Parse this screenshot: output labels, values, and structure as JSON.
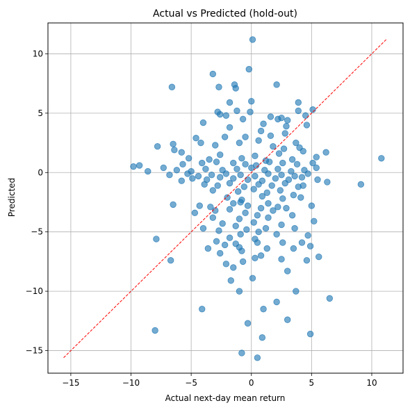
{
  "chart_data": {
    "type": "scatter",
    "title": "Actual vs Predicted (hold-out)",
    "xlabel": "Actual next-day mean return",
    "ylabel": "Predicted",
    "xlim": [
      -16.9,
      12.6
    ],
    "ylim": [
      -16.9,
      12.6
    ],
    "xticks": [
      -15,
      -10,
      -5,
      0,
      5,
      10
    ],
    "yticks": [
      -15,
      -10,
      -5,
      0,
      5,
      10
    ],
    "xtick_labels": [
      "−15",
      "−10",
      "−5",
      "0",
      "5",
      "10"
    ],
    "ytick_labels": [
      "−15",
      "−10",
      "−5",
      "0",
      "5",
      "10"
    ],
    "grid": true,
    "colors": {
      "points": "#1f77b4",
      "reference_line": "#ff0000",
      "grid": "#b0b0b0"
    },
    "reference_line": {
      "x": [
        -15.6,
        11.2
      ],
      "y": [
        -15.6,
        11.2
      ],
      "style": "dashed"
    },
    "points": [
      [
        0.1,
        11.2
      ],
      [
        -0.2,
        8.7
      ],
      [
        -3.2,
        8.3
      ],
      [
        2.1,
        7.4
      ],
      [
        -6.6,
        7.2
      ],
      [
        -1.4,
        7.4
      ],
      [
        -1.3,
        7.1
      ],
      [
        -2.7,
        7.2
      ],
      [
        -1.8,
        5.9
      ],
      [
        3.9,
        5.9
      ],
      [
        0.0,
        6.0
      ],
      [
        5.1,
        5.3
      ],
      [
        -2.6,
        4.9
      ],
      [
        -1.2,
        5.2
      ],
      [
        -2.1,
        4.8
      ],
      [
        2.2,
        4.5
      ],
      [
        -0.1,
        5.1
      ],
      [
        1.6,
        4.7
      ],
      [
        4.5,
        4.8
      ],
      [
        -2.8,
        5.1
      ],
      [
        3.9,
        5.2
      ],
      [
        2.5,
        4.6
      ],
      [
        -0.7,
        4.5
      ],
      [
        3.0,
        4.4
      ],
      [
        -4.0,
        4.2
      ],
      [
        2.9,
        3.9
      ],
      [
        1.0,
        4.1
      ],
      [
        4.6,
        4.0
      ],
      [
        -1.8,
        3.8
      ],
      [
        0.8,
        3.5
      ],
      [
        2.8,
        3.3
      ],
      [
        -0.5,
        3.0
      ],
      [
        1.6,
        3.1
      ],
      [
        -2.2,
        3.0
      ],
      [
        0.6,
        2.7
      ],
      [
        3.7,
        2.5
      ],
      [
        -6.5,
        2.4
      ],
      [
        -7.8,
        2.2
      ],
      [
        -4.6,
        2.9
      ],
      [
        -4.2,
        2.5
      ],
      [
        -3.0,
        2.3
      ],
      [
        -1.0,
        2.5
      ],
      [
        1.8,
        2.2
      ],
      [
        4.0,
        2.1
      ],
      [
        2.7,
        2.0
      ],
      [
        -5.8,
        1.7
      ],
      [
        -6.4,
        1.9
      ],
      [
        -2.6,
        1.5
      ],
      [
        0.3,
        1.4
      ],
      [
        2.3,
        1.6
      ],
      [
        4.3,
        1.8
      ],
      [
        6.2,
        1.7
      ],
      [
        -5.2,
        1.2
      ],
      [
        -3.5,
        1.1
      ],
      [
        -0.8,
        1.2
      ],
      [
        1.2,
        1.0
      ],
      [
        3.4,
        1.1
      ],
      [
        5.4,
        1.3
      ],
      [
        10.8,
        1.2
      ],
      [
        -9.8,
        0.5
      ],
      [
        -9.3,
        0.6
      ],
      [
        -7.3,
        0.4
      ],
      [
        -5.7,
        0.7
      ],
      [
        -4.1,
        0.8
      ],
      [
        -2.9,
        0.9
      ],
      [
        -1.5,
        0.8
      ],
      [
        -0.5,
        0.7
      ],
      [
        0.4,
        0.6
      ],
      [
        1.5,
        0.9
      ],
      [
        2.6,
        0.8
      ],
      [
        3.8,
        0.7
      ],
      [
        5.1,
        0.8
      ],
      [
        -8.6,
        0.1
      ],
      [
        -6.2,
        0.2
      ],
      [
        -5.0,
        0.1
      ],
      [
        -3.8,
        0.3
      ],
      [
        -2.4,
        0.2
      ],
      [
        -1.2,
        0.3
      ],
      [
        0.0,
        0.4
      ],
      [
        1.1,
        0.2
      ],
      [
        2.2,
        0.3
      ],
      [
        3.3,
        0.1
      ],
      [
        4.4,
        0.2
      ],
      [
        5.4,
        0.4
      ],
      [
        -6.8,
        -0.2
      ],
      [
        -5.3,
        -0.1
      ],
      [
        -4.4,
        -0.3
      ],
      [
        -3.3,
        -0.2
      ],
      [
        -2.1,
        -0.1
      ],
      [
        -0.9,
        -0.2
      ],
      [
        0.3,
        -0.3
      ],
      [
        1.4,
        -0.1
      ],
      [
        2.5,
        -0.2
      ],
      [
        3.6,
        -0.3
      ],
      [
        4.7,
        -0.1
      ],
      [
        -5.8,
        -0.7
      ],
      [
        -4.9,
        -0.5
      ],
      [
        -3.7,
        -0.6
      ],
      [
        -2.6,
        -0.4
      ],
      [
        -1.5,
        -0.5
      ],
      [
        -0.3,
        -0.6
      ],
      [
        0.9,
        -0.7
      ],
      [
        2.0,
        -0.5
      ],
      [
        3.1,
        -0.6
      ],
      [
        4.2,
        -0.4
      ],
      [
        5.5,
        -0.6
      ],
      [
        6.3,
        -0.8
      ],
      [
        9.1,
        -1.0
      ],
      [
        -3.9,
        -1.0
      ],
      [
        -2.8,
        -1.1
      ],
      [
        -1.8,
        -0.9
      ],
      [
        -0.6,
        -1.2
      ],
      [
        0.6,
        -1.0
      ],
      [
        1.7,
        -1.1
      ],
      [
        2.8,
        -0.9
      ],
      [
        3.9,
        -1.2
      ],
      [
        4.3,
        -1.1
      ],
      [
        -3.2,
        -1.5
      ],
      [
        -1.1,
        -1.6
      ],
      [
        0.2,
        -1.4
      ],
      [
        1.3,
        -1.7
      ],
      [
        2.4,
        -1.5
      ],
      [
        3.5,
        -1.9
      ],
      [
        -2.0,
        -2.1
      ],
      [
        -0.8,
        -2.3
      ],
      [
        0.9,
        -2.0
      ],
      [
        2.6,
        -2.2
      ],
      [
        4.1,
        -2.1
      ],
      [
        -1.5,
        -2.6
      ],
      [
        -0.3,
        -2.8
      ],
      [
        1.4,
        -2.6
      ],
      [
        2.2,
        -2.9
      ],
      [
        -6.5,
        -2.7
      ],
      [
        -4.3,
        -2.8
      ],
      [
        -3.4,
        -2.9
      ],
      [
        -0.9,
        -2.5
      ],
      [
        5.0,
        -2.8
      ],
      [
        -4.7,
        -3.4
      ],
      [
        -3.0,
        -3.2
      ],
      [
        -1.8,
        -3.1
      ],
      [
        -0.5,
        -3.4
      ],
      [
        0.8,
        -3.0
      ],
      [
        1.8,
        -3.2
      ],
      [
        2.9,
        -3.0
      ],
      [
        -3.2,
        -3.8
      ],
      [
        -1.0,
        -3.9
      ],
      [
        0.5,
        -3.6
      ],
      [
        1.4,
        -3.8
      ],
      [
        3.4,
        -3.6
      ],
      [
        -2.4,
        -4.3
      ],
      [
        -1.3,
        -4.5
      ],
      [
        0.2,
        -4.2
      ],
      [
        2.5,
        -4.4
      ],
      [
        5.2,
        -4.1
      ],
      [
        -4.0,
        -4.7
      ],
      [
        -2.7,
        -4.9
      ],
      [
        -0.4,
        -4.8
      ],
      [
        0.6,
        -5.0
      ],
      [
        1.2,
        -4.7
      ],
      [
        3.6,
        -4.7
      ],
      [
        -7.9,
        -5.6
      ],
      [
        -1.8,
        -5.5
      ],
      [
        -0.9,
        -5.2
      ],
      [
        0.3,
        -5.6
      ],
      [
        2.1,
        -5.2
      ],
      [
        4.7,
        -5.3
      ],
      [
        -2.9,
        -5.8
      ],
      [
        -1.3,
        -6.0
      ],
      [
        0.5,
        -5.9
      ],
      [
        2.6,
        -5.9
      ],
      [
        4.2,
        -5.9
      ],
      [
        -3.6,
        -6.4
      ],
      [
        -2.2,
        -6.1
      ],
      [
        -1.0,
        -6.3
      ],
      [
        1.3,
        -6.4
      ],
      [
        3.5,
        -6.4
      ],
      [
        4.9,
        -6.2
      ],
      [
        -6.7,
        -7.4
      ],
      [
        -2.6,
        -6.8
      ],
      [
        -0.8,
        -6.6
      ],
      [
        0.8,
        -7.0
      ],
      [
        5.6,
        -7.1
      ],
      [
        -2.1,
        -7.7
      ],
      [
        -0.7,
        -7.5
      ],
      [
        0.3,
        -7.2
      ],
      [
        2.5,
        -7.3
      ],
      [
        4.6,
        -7.4
      ],
      [
        -1.5,
        -8.0
      ],
      [
        3.0,
        -8.3
      ],
      [
        -1.7,
        -9.1
      ],
      [
        0.1,
        -8.9
      ],
      [
        -1.0,
        -10.0
      ],
      [
        3.7,
        -10.0
      ],
      [
        6.5,
        -10.6
      ],
      [
        2.1,
        -10.9
      ],
      [
        -4.1,
        -11.5
      ],
      [
        1.0,
        -11.5
      ],
      [
        -0.3,
        -12.7
      ],
      [
        3.0,
        -12.4
      ],
      [
        -8.0,
        -13.3
      ],
      [
        4.9,
        -13.6
      ],
      [
        0.9,
        -13.9
      ],
      [
        -0.8,
        -15.2
      ],
      [
        0.5,
        -15.6
      ]
    ]
  }
}
